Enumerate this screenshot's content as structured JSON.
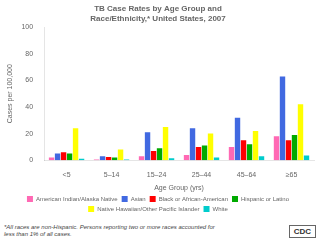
{
  "chart_data": {
    "type": "bar",
    "title": "TB Case Rates by Age Group and\nRace/Ethnicity,* United States, 2007",
    "xlabel": "Age Group (yrs)",
    "ylabel": "Cases per 100,000",
    "categories": [
      "<5",
      "5–14",
      "15–24",
      "25–44",
      "45–64",
      "≥65"
    ],
    "series": [
      {
        "name": "American Indian/Alaska Native",
        "color": "#ff69b4",
        "values": [
          2.0,
          0.5,
          3.0,
          4.0,
          10.0,
          18.0
        ]
      },
      {
        "name": "Asian",
        "color": "#4169e1",
        "values": [
          5.0,
          3.0,
          21.0,
          24.0,
          32.0,
          63.0
        ]
      },
      {
        "name": "Black or African-American",
        "color": "#ff0000",
        "values": [
          6.0,
          2.5,
          7.0,
          10.0,
          15.0,
          15.0
        ]
      },
      {
        "name": "Hispanic or Latino",
        "color": "#00aa00",
        "values": [
          5.0,
          2.0,
          9.0,
          11.0,
          12.0,
          19.0
        ]
      },
      {
        "name": "Native Hawaiian/Other Pacific Islander",
        "color": "#ffff00",
        "values": [
          24.0,
          8.0,
          25.0,
          20.0,
          22.0,
          42.0
        ]
      },
      {
        "name": "White",
        "color": "#00cccc",
        "values": [
          1.0,
          0.5,
          1.5,
          2.0,
          3.0,
          3.5
        ]
      }
    ],
    "ylim": [
      0,
      100
    ],
    "yticks": [
      0,
      20,
      40,
      60,
      80,
      100
    ],
    "grid": false,
    "legend": "bottom",
    "annotations": [
      "*All races are non-Hispanic. Persons reporting two or more races accounted for\nless than 1% of all cases.",
      "CDC"
    ]
  }
}
